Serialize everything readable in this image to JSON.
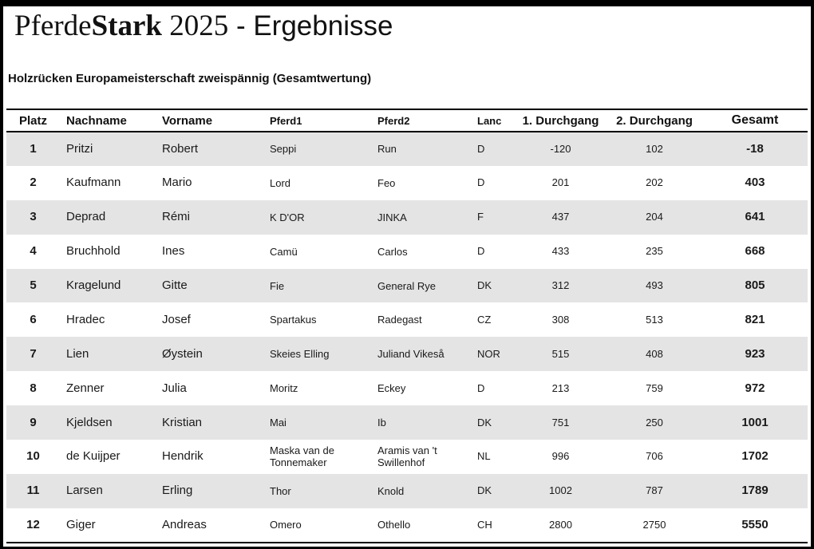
{
  "page": {
    "title": {
      "part1": "Pferde",
      "part2": "Stark",
      "part3": " 2025",
      "part4": " - Ergebnisse"
    },
    "subtitle": "Holzrücken Europameisterschaft zweispännig (Gesamtwertung)"
  },
  "table": {
    "columns": [
      {
        "key": "platz",
        "label": "Platz"
      },
      {
        "key": "nachname",
        "label": "Nachname"
      },
      {
        "key": "vorname",
        "label": "Vorname"
      },
      {
        "key": "pferd1",
        "label": "Pferd1"
      },
      {
        "key": "pferd2",
        "label": "Pferd2"
      },
      {
        "key": "land",
        "label": "Lanc"
      },
      {
        "key": "dg1",
        "label": "1. Durchgang"
      },
      {
        "key": "dg2",
        "label": "2. Durchgang"
      },
      {
        "key": "gesamt",
        "label": "Gesamt"
      }
    ],
    "rows": [
      [
        "1",
        "Pritzi",
        "Robert",
        "Seppi",
        "Run",
        "D",
        "-120",
        "102",
        "-18"
      ],
      [
        "2",
        "Kaufmann",
        "Mario",
        "Lord",
        "Feo",
        "D",
        "201",
        "202",
        "403"
      ],
      [
        "3",
        "Deprad",
        "Rémi",
        "K D'OR",
        "JINKA",
        "F",
        "437",
        "204",
        "641"
      ],
      [
        "4",
        "Bruchhold",
        "Ines",
        "Camü",
        "Carlos",
        "D",
        "433",
        "235",
        "668"
      ],
      [
        "5",
        "Kragelund",
        "Gitte",
        "Fie",
        "General Rye",
        "DK",
        "312",
        "493",
        "805"
      ],
      [
        "6",
        "Hradec",
        "Josef",
        "Spartakus",
        "Radegast",
        "CZ",
        "308",
        "513",
        "821"
      ],
      [
        "7",
        "Lien",
        "Øystein",
        "Skeies Elling",
        "Juliand Vikeså",
        "NOR",
        "515",
        "408",
        "923"
      ],
      [
        "8",
        "Zenner",
        "Julia",
        "Moritz",
        "Eckey",
        "D",
        "213",
        "759",
        "972"
      ],
      [
        "9",
        "Kjeldsen",
        "Kristian",
        "Mai",
        "Ib",
        "DK",
        "751",
        "250",
        "1001"
      ],
      [
        "10",
        "de Kuijper",
        "Hendrik",
        "Maska van de Tonnemaker",
        "Aramis van 't Swillenhof",
        "NL",
        "996",
        "706",
        "1702"
      ],
      [
        "11",
        "Larsen",
        "Erling",
        "Thor",
        "Knold",
        "DK",
        "1002",
        "787",
        "1789"
      ],
      [
        "12",
        "Giger",
        "Andreas",
        "Omero",
        "Othello",
        "CH",
        "2800",
        "2750",
        "5550"
      ]
    ]
  },
  "colors": {
    "stripe": "#e4e4e4",
    "border": "#000000",
    "text": "#1a1a1a",
    "frame": "#000000"
  }
}
